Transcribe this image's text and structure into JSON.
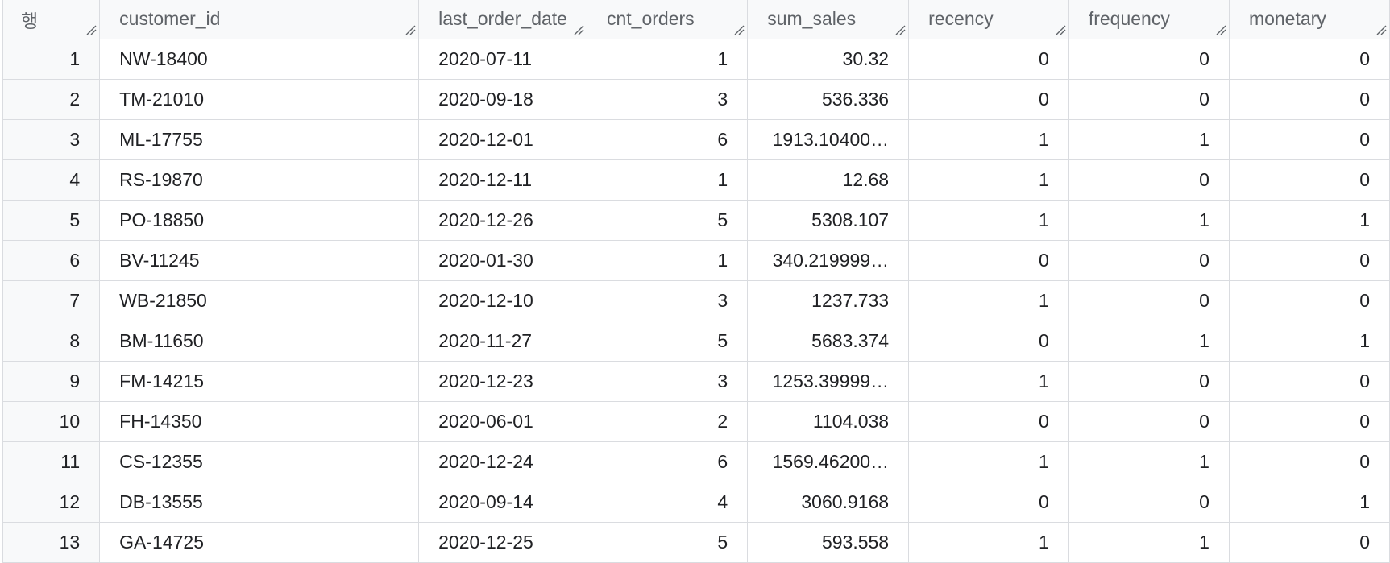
{
  "columns": [
    {
      "label": "행",
      "key": "row",
      "align": "right"
    },
    {
      "label": "customer_id",
      "key": "customer_id",
      "align": "left"
    },
    {
      "label": "last_order_date",
      "key": "last_order_date",
      "align": "left"
    },
    {
      "label": "cnt_orders",
      "key": "cnt_orders",
      "align": "right"
    },
    {
      "label": "sum_sales",
      "key": "sum_sales",
      "align": "right"
    },
    {
      "label": "recency",
      "key": "recency",
      "align": "right"
    },
    {
      "label": "frequency",
      "key": "frequency",
      "align": "right"
    },
    {
      "label": "monetary",
      "key": "monetary",
      "align": "right"
    }
  ],
  "rows": [
    {
      "row": "1",
      "customer_id": "NW-18400",
      "last_order_date": "2020-07-11",
      "cnt_orders": "1",
      "sum_sales": "30.32",
      "recency": "0",
      "frequency": "0",
      "monetary": "0"
    },
    {
      "row": "2",
      "customer_id": "TM-21010",
      "last_order_date": "2020-09-18",
      "cnt_orders": "3",
      "sum_sales": "536.336",
      "recency": "0",
      "frequency": "0",
      "monetary": "0"
    },
    {
      "row": "3",
      "customer_id": "ML-17755",
      "last_order_date": "2020-12-01",
      "cnt_orders": "6",
      "sum_sales": "1913.10400…",
      "recency": "1",
      "frequency": "1",
      "monetary": "0"
    },
    {
      "row": "4",
      "customer_id": "RS-19870",
      "last_order_date": "2020-12-11",
      "cnt_orders": "1",
      "sum_sales": "12.68",
      "recency": "1",
      "frequency": "0",
      "monetary": "0"
    },
    {
      "row": "5",
      "customer_id": "PO-18850",
      "last_order_date": "2020-12-26",
      "cnt_orders": "5",
      "sum_sales": "5308.107",
      "recency": "1",
      "frequency": "1",
      "monetary": "1"
    },
    {
      "row": "6",
      "customer_id": "BV-11245",
      "last_order_date": "2020-01-30",
      "cnt_orders": "1",
      "sum_sales": "340.219999…",
      "recency": "0",
      "frequency": "0",
      "monetary": "0"
    },
    {
      "row": "7",
      "customer_id": "WB-21850",
      "last_order_date": "2020-12-10",
      "cnt_orders": "3",
      "sum_sales": "1237.733",
      "recency": "1",
      "frequency": "0",
      "monetary": "0"
    },
    {
      "row": "8",
      "customer_id": "BM-11650",
      "last_order_date": "2020-11-27",
      "cnt_orders": "5",
      "sum_sales": "5683.374",
      "recency": "0",
      "frequency": "1",
      "monetary": "1"
    },
    {
      "row": "9",
      "customer_id": "FM-14215",
      "last_order_date": "2020-12-23",
      "cnt_orders": "3",
      "sum_sales": "1253.39999…",
      "recency": "1",
      "frequency": "0",
      "monetary": "0"
    },
    {
      "row": "10",
      "customer_id": "FH-14350",
      "last_order_date": "2020-06-01",
      "cnt_orders": "2",
      "sum_sales": "1104.038",
      "recency": "0",
      "frequency": "0",
      "monetary": "0"
    },
    {
      "row": "11",
      "customer_id": "CS-12355",
      "last_order_date": "2020-12-24",
      "cnt_orders": "6",
      "sum_sales": "1569.46200…",
      "recency": "1",
      "frequency": "1",
      "monetary": "0"
    },
    {
      "row": "12",
      "customer_id": "DB-13555",
      "last_order_date": "2020-09-14",
      "cnt_orders": "4",
      "sum_sales": "3060.9168",
      "recency": "0",
      "frequency": "0",
      "monetary": "1"
    },
    {
      "row": "13",
      "customer_id": "GA-14725",
      "last_order_date": "2020-12-25",
      "cnt_orders": "5",
      "sum_sales": "593.558",
      "recency": "1",
      "frequency": "1",
      "monetary": "0"
    }
  ],
  "icons": {
    "column_resize": "resize-handle-icon"
  },
  "colors": {
    "header_bg": "#f8f9fa",
    "grid_line": "#dadce0",
    "header_text": "#5f6368"
  }
}
